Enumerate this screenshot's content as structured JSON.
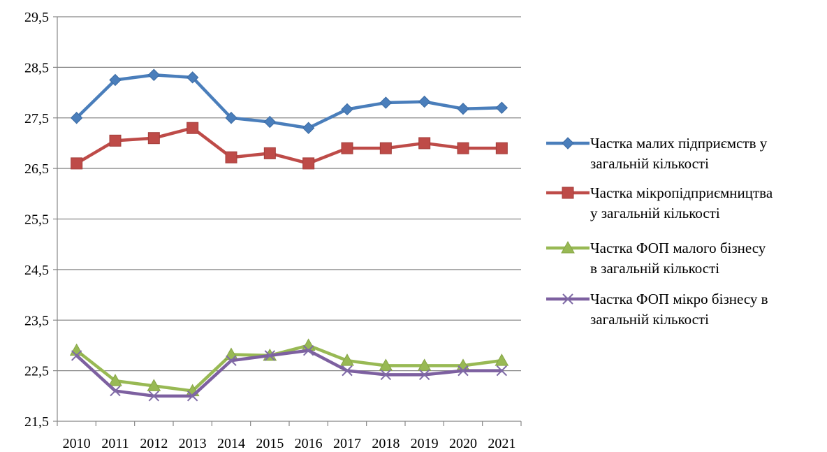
{
  "chart_data": {
    "type": "line",
    "title": "",
    "xlabel": "",
    "ylabel": "",
    "x": [
      "2010",
      "2011",
      "2012",
      "2013",
      "2014",
      "2015",
      "2016",
      "2017",
      "2018",
      "2019",
      "2020",
      "2021"
    ],
    "ylim": [
      21.5,
      29.5
    ],
    "yticks": [
      21.5,
      22.5,
      23.5,
      24.5,
      25.5,
      26.5,
      27.5,
      28.5,
      29.5
    ],
    "ytick_labels": [
      "21,5",
      "22,5",
      "23,5",
      "24,5",
      "25,5",
      "26,5",
      "27,5",
      "28,5",
      "29,5"
    ],
    "grid": "horizontal",
    "legend_position": "right",
    "series": [
      {
        "name": "Частка малих підприємств у загальній кількості",
        "name_lines": [
          "Частка малих підприємств у",
          "загальній кількості"
        ],
        "marker": "diamond",
        "color": "#4a7ebb",
        "values": [
          27.5,
          28.25,
          28.35,
          28.3,
          27.5,
          27.42,
          27.3,
          27.67,
          27.8,
          27.82,
          27.68,
          27.7
        ]
      },
      {
        "name": "Частка мікропідприємництва у загальній кількості",
        "name_lines": [
          "Частка мікропідприємництва",
          "у загальній кількості"
        ],
        "marker": "square",
        "color": "#be4b48",
        "values": [
          26.6,
          27.05,
          27.1,
          27.3,
          26.72,
          26.8,
          26.6,
          26.9,
          26.9,
          27.0,
          26.9,
          26.9
        ]
      },
      {
        "name": "Частка ФОП малого бізнесу в загальній кількості",
        "name_lines": [
          "Частка ФОП малого бізнесу",
          "в загальній кількості"
        ],
        "marker": "triangle",
        "color": "#98b954",
        "values": [
          22.9,
          22.3,
          22.2,
          22.1,
          22.82,
          22.8,
          23.0,
          22.7,
          22.6,
          22.6,
          22.6,
          22.7
        ]
      },
      {
        "name": "Частка ФОП мікро бізнесу в загальній кількості",
        "name_lines": [
          "Частка ФОП мікро бізнесу в",
          "загальній кількості"
        ],
        "marker": "x",
        "color": "#7d60a0",
        "values": [
          22.8,
          22.1,
          22.0,
          22.0,
          22.7,
          22.8,
          22.9,
          22.5,
          22.42,
          22.42,
          22.5,
          22.5
        ]
      }
    ]
  }
}
